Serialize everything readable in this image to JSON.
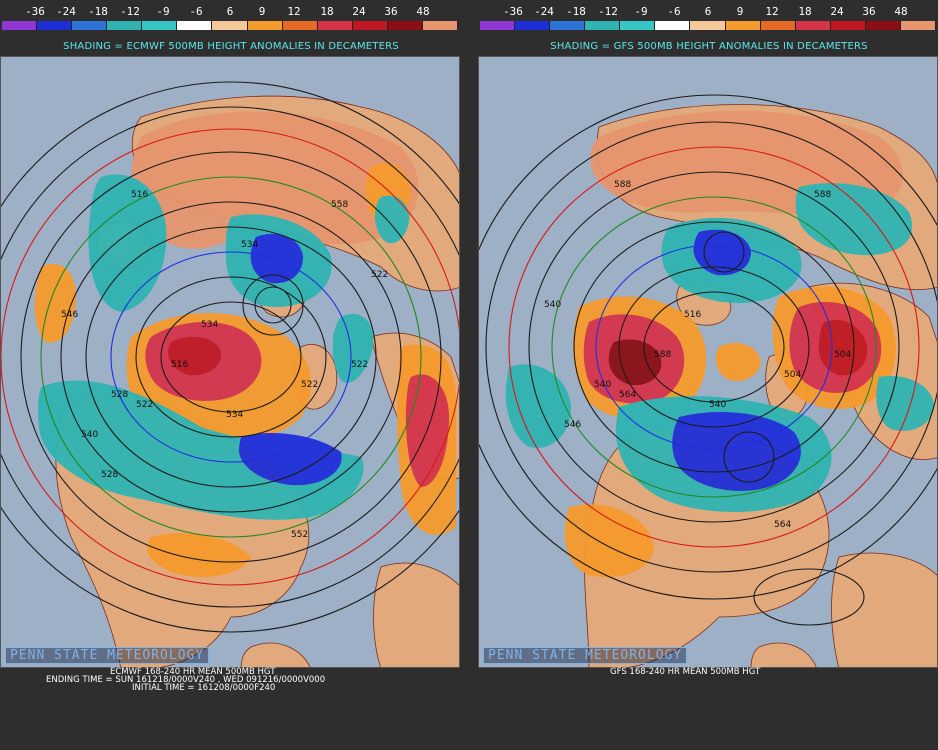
{
  "colorbar": {
    "labels": [
      "-36",
      "-24",
      "-18",
      "-12",
      "-9",
      "-6",
      "6",
      "9",
      "12",
      "18",
      "24",
      "36",
      "48"
    ],
    "colors": [
      "#8f36d4",
      "#1f2fd8",
      "#2f72d6",
      "#30b4b2",
      "#36c6c6",
      "#ffffff",
      "#f5c89a",
      "#f59a2c",
      "#e46a26",
      "#d4344a",
      "#c01822",
      "#8a0e14",
      "#e6956e"
    ]
  },
  "left": {
    "shading_title": "SHADING = ECMWF 500MB HEIGHT ANOMALIES IN DECAMETERS",
    "watermark": "PENN STATE METEOROLOGY",
    "caption_lines": [
      "ECMWF 168-240 HR MEAN 500MB HGT",
      "ENDING TIME = SUN 161218/0000V240 , WED 091216/0000V000",
      "INITIAL TIME = 161208/0000F240"
    ],
    "contour_labels": [
      "516",
      "522",
      "528",
      "534",
      "522",
      "522",
      "540",
      "534",
      "546",
      "552",
      "558",
      "516",
      "522",
      "528",
      "534"
    ]
  },
  "right": {
    "shading_title": "SHADING = GFS 500MB HEIGHT ANOMALIES IN DECAMETERS",
    "watermark": "PENN STATE METEOROLOGY",
    "caption_lines": [
      "GFS 168-240 HR MEAN 500MB HGT"
    ],
    "contour_labels": [
      "588",
      "564",
      "540",
      "516",
      "504",
      "504",
      "546",
      "540",
      "540",
      "564",
      "588",
      "588"
    ]
  },
  "colors": {
    "ocean": "#9eb0c6",
    "land": "#e2a97d",
    "coast": "#7a2d1a",
    "contour": "#1b1b1b",
    "line_red": "#d81818",
    "line_green": "#1f8a1f",
    "line_blue": "#1e2fe0"
  }
}
